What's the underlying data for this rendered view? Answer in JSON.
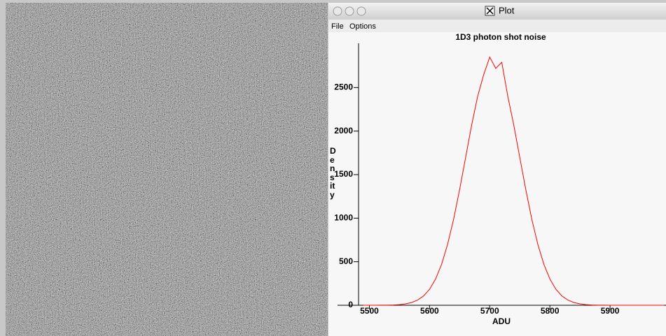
{
  "window": {
    "title": "Plot",
    "menu": [
      "File",
      "Options"
    ]
  },
  "chart_data": {
    "type": "line",
    "title": "1D3 photon shot noise",
    "x_label": "ADU",
    "y_label": "Density",
    "x": [
      5490,
      5500,
      5510,
      5520,
      5530,
      5540,
      5550,
      5560,
      5570,
      5580,
      5590,
      5600,
      5610,
      5620,
      5630,
      5640,
      5650,
      5660,
      5670,
      5680,
      5690,
      5700,
      5710,
      5720,
      5730,
      5740,
      5750,
      5760,
      5770,
      5780,
      5790,
      5800,
      5810,
      5820,
      5830,
      5840,
      5850,
      5860,
      5870,
      5880,
      5890,
      5900,
      5910,
      5920,
      5930,
      5940,
      5950,
      5960,
      5970,
      5980,
      5990
    ],
    "values": [
      0,
      0,
      0,
      1,
      1,
      3,
      7,
      16,
      31,
      59,
      107,
      184,
      302,
      471,
      699,
      987,
      1328,
      1698,
      2070,
      2400,
      2649,
      2850,
      2720,
      2790,
      2400,
      2070,
      1698,
      1328,
      987,
      699,
      471,
      302,
      184,
      107,
      59,
      31,
      16,
      7,
      3,
      1,
      1,
      0,
      0,
      0,
      0,
      0,
      0,
      0,
      0,
      0,
      0
    ],
    "color": "#ff0000",
    "xlim": [
      5482,
      5993
    ],
    "xticks": [
      5500,
      5600,
      5700,
      5800,
      5900
    ],
    "ylim": [
      0,
      3000
    ],
    "yticks": [
      0,
      500,
      1000,
      1500,
      2000,
      2500
    ]
  }
}
